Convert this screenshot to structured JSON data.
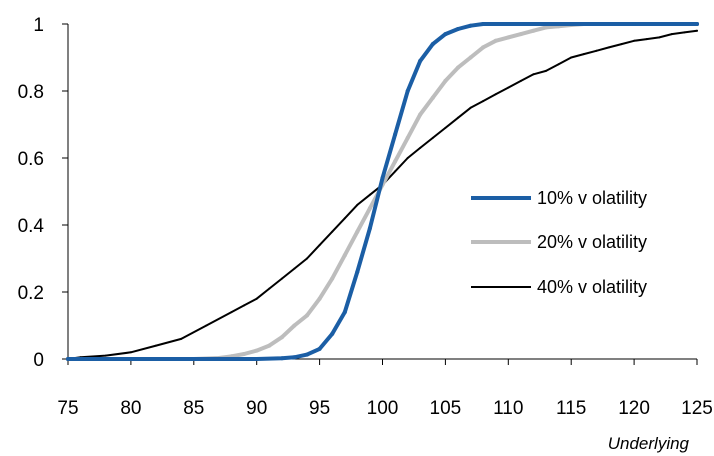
{
  "chart_data": {
    "type": "line",
    "title": "",
    "xlabel": "Underlying",
    "ylabel": "",
    "xlim": [
      75,
      125
    ],
    "ylim": [
      0,
      1
    ],
    "x_ticks": [
      "75",
      "80",
      "85",
      "90",
      "95",
      "100",
      "105",
      "110",
      "115",
      "120",
      "125"
    ],
    "y_ticks": [
      "0",
      "0.2",
      "0.4",
      "0.6",
      "0.8",
      "1"
    ],
    "grid": false,
    "legend_position": "right",
    "series": [
      {
        "name": "10% v olatility",
        "color": "#1B5EA5",
        "line": "thick",
        "x": [
          75,
          80,
          85,
          90,
          92,
          93,
          94,
          95,
          96,
          97,
          98,
          99,
          100,
          101,
          102,
          103,
          104,
          105,
          106,
          107,
          108,
          110,
          115,
          120,
          125
        ],
        "y": [
          0,
          0,
          0,
          0,
          0.002,
          0.005,
          0.013,
          0.03,
          0.075,
          0.14,
          0.26,
          0.39,
          0.54,
          0.67,
          0.8,
          0.89,
          0.94,
          0.97,
          0.985,
          0.995,
          1,
          1,
          1,
          1,
          1
        ]
      },
      {
        "name": "20% v olatility",
        "color": "#BDBDBD",
        "line": "thick",
        "x": [
          75,
          80,
          85,
          87,
          88,
          89,
          90,
          91,
          92,
          93,
          94,
          95,
          96,
          97,
          98,
          99,
          100,
          101,
          102,
          103,
          104,
          105,
          106,
          107,
          108,
          109,
          110,
          111,
          112,
          113,
          114,
          115,
          116,
          120,
          125
        ],
        "y": [
          0,
          0,
          0,
          0.003,
          0.008,
          0.015,
          0.025,
          0.04,
          0.065,
          0.1,
          0.13,
          0.18,
          0.24,
          0.31,
          0.38,
          0.45,
          0.52,
          0.59,
          0.66,
          0.73,
          0.78,
          0.83,
          0.87,
          0.9,
          0.93,
          0.95,
          0.96,
          0.97,
          0.98,
          0.99,
          0.993,
          0.997,
          1,
          1,
          1
        ]
      },
      {
        "name": "40% v olatility",
        "color": "#000000",
        "line": "thin",
        "x": [
          75,
          76,
          78,
          80,
          82,
          84,
          86,
          88,
          89,
          90,
          91,
          92,
          93,
          94,
          95,
          96,
          97,
          98,
          99,
          100,
          101,
          102,
          103,
          104,
          105,
          106,
          107,
          108,
          109,
          110,
          111,
          112,
          113,
          114,
          115,
          116,
          117,
          118,
          119,
          120,
          121,
          122,
          123,
          124,
          125
        ],
        "y": [
          0,
          0.005,
          0.01,
          0.02,
          0.04,
          0.06,
          0.1,
          0.14,
          0.16,
          0.18,
          0.21,
          0.24,
          0.27,
          0.3,
          0.34,
          0.38,
          0.42,
          0.46,
          0.49,
          0.52,
          0.56,
          0.6,
          0.63,
          0.66,
          0.69,
          0.72,
          0.75,
          0.77,
          0.79,
          0.81,
          0.83,
          0.85,
          0.86,
          0.88,
          0.9,
          0.91,
          0.92,
          0.93,
          0.94,
          0.95,
          0.955,
          0.96,
          0.97,
          0.975,
          0.98
        ]
      }
    ]
  }
}
